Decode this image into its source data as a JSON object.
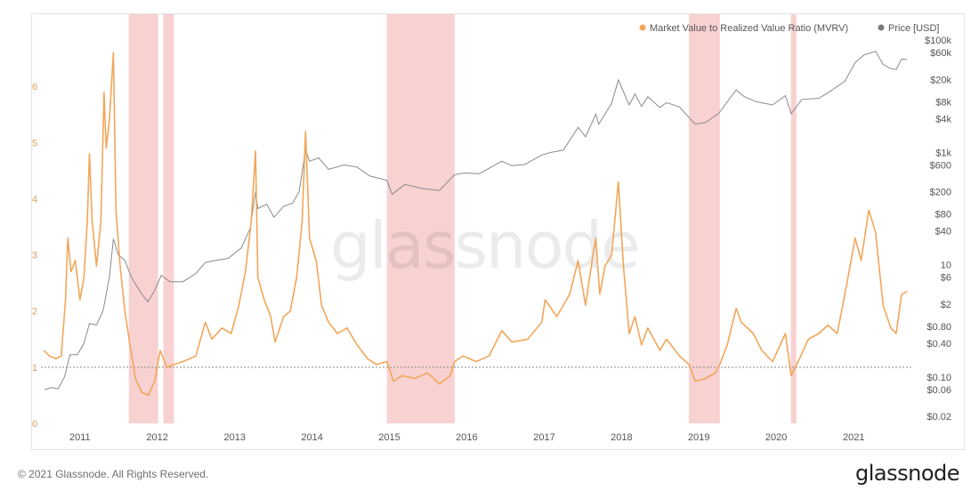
{
  "watermark": "glassnode",
  "footer": {
    "copyright": "© 2021 Glassnode. All Rights Reserved.",
    "logo": "glassnode"
  },
  "colors": {
    "mvrv": "#f2a65a",
    "price": "#8a8a8a",
    "shade": "#f6c6c6",
    "ref_line": "#888888",
    "accent_below": "#e07a3a"
  },
  "chart_data": {
    "type": "line",
    "x_range": [
      "2010-07-01",
      "2021-09-30"
    ],
    "x_ticks": [
      {
        "label": "2011",
        "date": "2011-01-01"
      },
      {
        "label": "2012",
        "date": "2012-01-01"
      },
      {
        "label": "2013",
        "date": "2013-01-01"
      },
      {
        "label": "2014",
        "date": "2014-01-01"
      },
      {
        "label": "2015",
        "date": "2015-01-01"
      },
      {
        "label": "2016",
        "date": "2016-01-01"
      },
      {
        "label": "2017",
        "date": "2017-01-01"
      },
      {
        "label": "2018",
        "date": "2018-01-01"
      },
      {
        "label": "2019",
        "date": "2019-01-01"
      },
      {
        "label": "2020",
        "date": "2020-01-01"
      },
      {
        "label": "2021",
        "date": "2021-01-01"
      }
    ],
    "left_axis": {
      "ylim": [
        0,
        7
      ],
      "ticks": [
        "0",
        "1",
        "2",
        "3",
        "4",
        "5",
        "6"
      ],
      "reference_line": 1
    },
    "right_axis": {
      "scale": "log",
      "ylim": [
        0.015,
        150000
      ],
      "ticks": [
        {
          "label": "$0.02",
          "value": 0.02
        },
        {
          "label": "$0.06",
          "value": 0.06
        },
        {
          "label": "$0.10",
          "value": 0.1
        },
        {
          "label": "$0.40",
          "value": 0.4
        },
        {
          "label": "$0.80",
          "value": 0.8
        },
        {
          "label": "$2",
          "value": 2
        },
        {
          "label": "$6",
          "value": 6
        },
        {
          "label": "10",
          "value": 10
        },
        {
          "label": "$40",
          "value": 40
        },
        {
          "label": "$80",
          "value": 80
        },
        {
          "label": "$200",
          "value": 200
        },
        {
          "label": "$600",
          "value": 600
        },
        {
          "label": "$1k",
          "value": 1000
        },
        {
          "label": "$4k",
          "value": 4000
        },
        {
          "label": "$8k",
          "value": 8000
        },
        {
          "label": "$20k",
          "value": 20000
        },
        {
          "label": "$60k",
          "value": 60000
        },
        {
          "label": "$100k",
          "value": 100000
        }
      ]
    },
    "legend": [
      {
        "name": "Market Value to Realized Value Ratio (MVRV)",
        "color": "#f2a65a"
      },
      {
        "name": "Price [USD]",
        "color": "#7a7a7a"
      }
    ],
    "shaded_periods": [
      {
        "start": "2011-08-20",
        "end": "2012-01-05"
      },
      {
        "start": "2012-01-30",
        "end": "2012-03-20"
      },
      {
        "start": "2014-12-20",
        "end": "2015-11-05"
      },
      {
        "start": "2018-11-15",
        "end": "2019-04-10"
      },
      {
        "start": "2020-03-10",
        "end": "2020-04-05"
      }
    ],
    "series": [
      {
        "name": "Market Value to Realized Value Ratio (MVRV)",
        "axis": "left",
        "points": [
          [
            "2010-07-15",
            1.3
          ],
          [
            "2010-08-10",
            1.2
          ],
          [
            "2010-09-10",
            1.15
          ],
          [
            "2010-10-05",
            1.2
          ],
          [
            "2010-10-25",
            2.2
          ],
          [
            "2010-11-05",
            3.3
          ],
          [
            "2010-11-20",
            2.7
          ],
          [
            "2010-12-10",
            2.9
          ],
          [
            "2011-01-01",
            2.2
          ],
          [
            "2011-01-20",
            2.6
          ],
          [
            "2011-02-05",
            3.6
          ],
          [
            "2011-02-15",
            4.8
          ],
          [
            "2011-02-28",
            3.6
          ],
          [
            "2011-03-20",
            2.8
          ],
          [
            "2011-04-10",
            3.6
          ],
          [
            "2011-04-25",
            5.9
          ],
          [
            "2011-05-05",
            4.9
          ],
          [
            "2011-05-20",
            5.4
          ],
          [
            "2011-06-08",
            6.6
          ],
          [
            "2011-06-20",
            3.8
          ],
          [
            "2011-07-10",
            2.8
          ],
          [
            "2011-08-01",
            2.0
          ],
          [
            "2011-08-25",
            1.4
          ],
          [
            "2011-09-20",
            0.8
          ],
          [
            "2011-10-20",
            0.55
          ],
          [
            "2011-11-20",
            0.5
          ],
          [
            "2011-12-20",
            0.75
          ],
          [
            "2012-01-15",
            1.3
          ],
          [
            "2012-02-15",
            1.0
          ],
          [
            "2012-03-20",
            1.05
          ],
          [
            "2012-05-01",
            1.1
          ],
          [
            "2012-07-01",
            1.2
          ],
          [
            "2012-08-15",
            1.8
          ],
          [
            "2012-09-15",
            1.5
          ],
          [
            "2012-11-01",
            1.7
          ],
          [
            "2012-12-15",
            1.6
          ],
          [
            "2013-01-20",
            2.1
          ],
          [
            "2013-02-20",
            2.7
          ],
          [
            "2013-03-20",
            3.6
          ],
          [
            "2013-04-09",
            4.85
          ],
          [
            "2013-04-20",
            2.6
          ],
          [
            "2013-05-20",
            2.2
          ],
          [
            "2013-06-20",
            1.9
          ],
          [
            "2013-07-10",
            1.45
          ],
          [
            "2013-08-20",
            1.9
          ],
          [
            "2013-09-20",
            2.0
          ],
          [
            "2013-10-20",
            2.6
          ],
          [
            "2013-11-15",
            3.6
          ],
          [
            "2013-12-01",
            5.2
          ],
          [
            "2013-12-20",
            3.3
          ],
          [
            "2014-01-20",
            2.9
          ],
          [
            "2014-02-15",
            2.1
          ],
          [
            "2014-03-20",
            1.8
          ],
          [
            "2014-05-01",
            1.6
          ],
          [
            "2014-06-15",
            1.7
          ],
          [
            "2014-08-01",
            1.4
          ],
          [
            "2014-09-20",
            1.15
          ],
          [
            "2014-11-01",
            1.05
          ],
          [
            "2014-12-20",
            1.1
          ],
          [
            "2015-01-20",
            0.75
          ],
          [
            "2015-03-01",
            0.85
          ],
          [
            "2015-05-01",
            0.8
          ],
          [
            "2015-07-01",
            0.9
          ],
          [
            "2015-08-25",
            0.7
          ],
          [
            "2015-10-15",
            0.85
          ],
          [
            "2015-11-05",
            1.1
          ],
          [
            "2015-12-15",
            1.2
          ],
          [
            "2016-02-15",
            1.1
          ],
          [
            "2016-04-15",
            1.2
          ],
          [
            "2016-06-15",
            1.65
          ],
          [
            "2016-08-01",
            1.45
          ],
          [
            "2016-10-15",
            1.5
          ],
          [
            "2016-12-20",
            1.8
          ],
          [
            "2017-01-05",
            2.2
          ],
          [
            "2017-03-01",
            1.9
          ],
          [
            "2017-05-01",
            2.3
          ],
          [
            "2017-06-10",
            2.9
          ],
          [
            "2017-07-15",
            2.1
          ],
          [
            "2017-08-15",
            2.9
          ],
          [
            "2017-09-01",
            3.3
          ],
          [
            "2017-09-20",
            2.3
          ],
          [
            "2017-10-15",
            2.8
          ],
          [
            "2017-11-15",
            3.0
          ],
          [
            "2017-12-17",
            4.3
          ],
          [
            "2018-01-10",
            2.8
          ],
          [
            "2018-02-06",
            1.6
          ],
          [
            "2018-03-05",
            1.9
          ],
          [
            "2018-04-05",
            1.4
          ],
          [
            "2018-05-05",
            1.7
          ],
          [
            "2018-07-01",
            1.3
          ],
          [
            "2018-08-01",
            1.5
          ],
          [
            "2018-10-01",
            1.2
          ],
          [
            "2018-11-15",
            1.05
          ],
          [
            "2018-12-15",
            0.75
          ],
          [
            "2019-02-01",
            0.8
          ],
          [
            "2019-03-20",
            0.9
          ],
          [
            "2019-04-10",
            1.05
          ],
          [
            "2019-05-15",
            1.4
          ],
          [
            "2019-06-26",
            2.05
          ],
          [
            "2019-07-20",
            1.8
          ],
          [
            "2019-09-15",
            1.6
          ],
          [
            "2019-10-25",
            1.3
          ],
          [
            "2019-12-15",
            1.1
          ],
          [
            "2020-02-13",
            1.6
          ],
          [
            "2020-03-12",
            0.85
          ],
          [
            "2020-04-20",
            1.15
          ],
          [
            "2020-06-01",
            1.5
          ],
          [
            "2020-07-20",
            1.6
          ],
          [
            "2020-09-01",
            1.75
          ],
          [
            "2020-10-15",
            1.6
          ],
          [
            "2020-11-20",
            2.3
          ],
          [
            "2021-01-08",
            3.3
          ],
          [
            "2021-02-05",
            2.9
          ],
          [
            "2021-03-13",
            3.8
          ],
          [
            "2021-04-14",
            3.4
          ],
          [
            "2021-05-20",
            2.1
          ],
          [
            "2021-06-25",
            1.7
          ],
          [
            "2021-07-20",
            1.6
          ],
          [
            "2021-08-15",
            2.3
          ],
          [
            "2021-09-10",
            2.35
          ]
        ]
      },
      {
        "name": "Price [USD]",
        "axis": "right",
        "points": [
          [
            "2010-07-18",
            0.06
          ],
          [
            "2010-08-20",
            0.065
          ],
          [
            "2010-09-20",
            0.062
          ],
          [
            "2010-10-20",
            0.1
          ],
          [
            "2010-11-15",
            0.25
          ],
          [
            "2010-12-20",
            0.25
          ],
          [
            "2011-01-20",
            0.4
          ],
          [
            "2011-02-15",
            0.9
          ],
          [
            "2011-03-20",
            0.85
          ],
          [
            "2011-04-20",
            1.5
          ],
          [
            "2011-05-20",
            6
          ],
          [
            "2011-06-08",
            29
          ],
          [
            "2011-07-01",
            15
          ],
          [
            "2011-08-01",
            12
          ],
          [
            "2011-09-01",
            6
          ],
          [
            "2011-10-20",
            3
          ],
          [
            "2011-11-18",
            2.2
          ],
          [
            "2011-12-20",
            3.5
          ],
          [
            "2012-01-20",
            6.5
          ],
          [
            "2012-03-01",
            5
          ],
          [
            "2012-05-01",
            5
          ],
          [
            "2012-07-01",
            7
          ],
          [
            "2012-08-15",
            11
          ],
          [
            "2012-10-01",
            12
          ],
          [
            "2012-12-01",
            13
          ],
          [
            "2013-02-01",
            20
          ],
          [
            "2013-03-15",
            45
          ],
          [
            "2013-04-09",
            200
          ],
          [
            "2013-04-20",
            100
          ],
          [
            "2013-06-01",
            120
          ],
          [
            "2013-07-05",
            70
          ],
          [
            "2013-08-20",
            110
          ],
          [
            "2013-10-01",
            125
          ],
          [
            "2013-11-01",
            200
          ],
          [
            "2013-12-01",
            1100
          ],
          [
            "2013-12-20",
            700
          ],
          [
            "2014-02-01",
            800
          ],
          [
            "2014-03-20",
            500
          ],
          [
            "2014-06-01",
            600
          ],
          [
            "2014-08-01",
            550
          ],
          [
            "2014-10-01",
            380
          ],
          [
            "2014-12-20",
            320
          ],
          [
            "2015-01-14",
            180
          ],
          [
            "2015-03-15",
            270
          ],
          [
            "2015-06-01",
            230
          ],
          [
            "2015-08-25",
            210
          ],
          [
            "2015-11-04",
            400
          ],
          [
            "2015-12-20",
            430
          ],
          [
            "2016-03-01",
            420
          ],
          [
            "2016-06-15",
            700
          ],
          [
            "2016-08-01",
            580
          ],
          [
            "2016-10-01",
            610
          ],
          [
            "2016-12-20",
            900
          ],
          [
            "2017-02-01",
            1000
          ],
          [
            "2017-04-01",
            1100
          ],
          [
            "2017-06-10",
            2800
          ],
          [
            "2017-07-15",
            1900
          ],
          [
            "2017-09-01",
            4800
          ],
          [
            "2017-09-15",
            3200
          ],
          [
            "2017-11-15",
            7500
          ],
          [
            "2017-12-17",
            19500
          ],
          [
            "2018-02-06",
            7000
          ],
          [
            "2018-03-05",
            11000
          ],
          [
            "2018-04-05",
            6600
          ],
          [
            "2018-05-05",
            9800
          ],
          [
            "2018-07-01",
            6300
          ],
          [
            "2018-08-01",
            7700
          ],
          [
            "2018-10-01",
            6500
          ],
          [
            "2018-11-25",
            3800
          ],
          [
            "2018-12-15",
            3200
          ],
          [
            "2019-02-01",
            3400
          ],
          [
            "2019-04-05",
            5000
          ],
          [
            "2019-06-26",
            13000
          ],
          [
            "2019-08-01",
            10000
          ],
          [
            "2019-09-30",
            8000
          ],
          [
            "2019-12-15",
            7000
          ],
          [
            "2020-02-13",
            10300
          ],
          [
            "2020-03-12",
            4900
          ],
          [
            "2020-05-01",
            8800
          ],
          [
            "2020-07-20",
            9200
          ],
          [
            "2020-09-01",
            11500
          ],
          [
            "2020-11-20",
            18500
          ],
          [
            "2021-01-08",
            40000
          ],
          [
            "2021-02-20",
            55000
          ],
          [
            "2021-04-14",
            63000
          ],
          [
            "2021-05-20",
            37000
          ],
          [
            "2021-06-25",
            31000
          ],
          [
            "2021-07-20",
            30000
          ],
          [
            "2021-08-15",
            46000
          ],
          [
            "2021-09-10",
            45000
          ]
        ]
      }
    ]
  }
}
